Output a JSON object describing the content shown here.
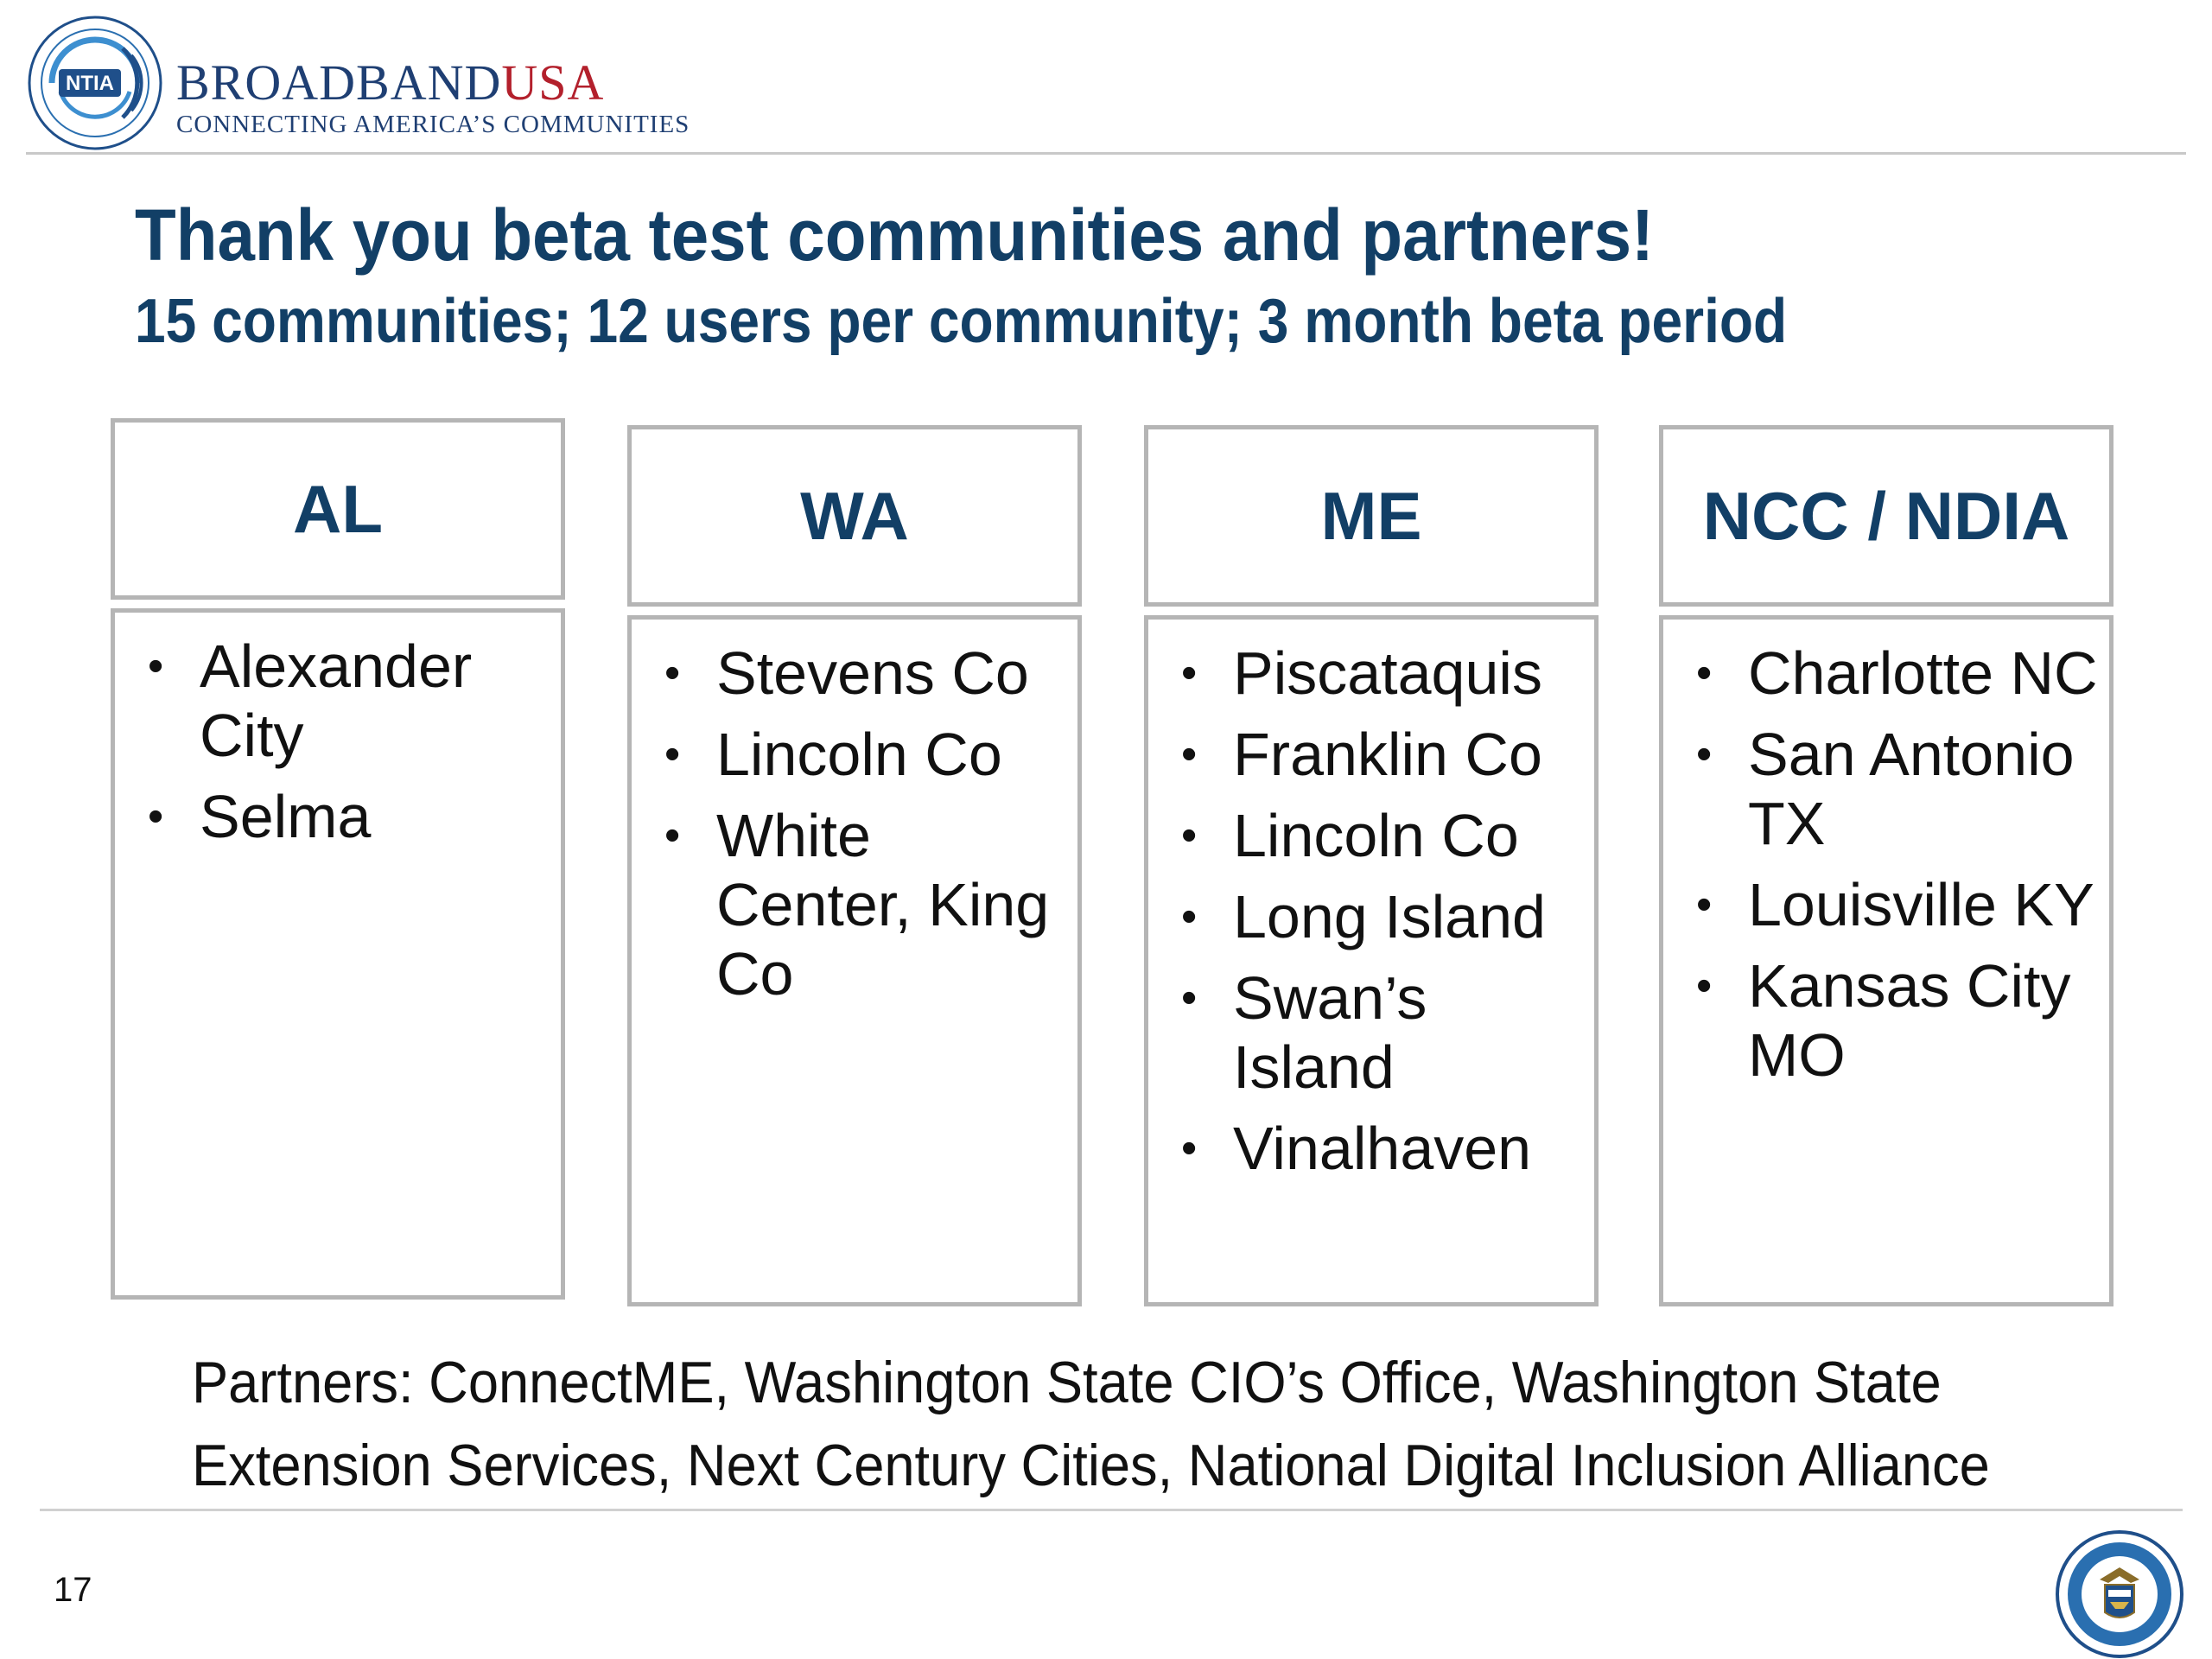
{
  "header": {
    "logo_text": "NTIA",
    "brand_part1": "BROADBAND",
    "brand_part2": "USA",
    "tagline": "CONNECTING AMERICA’S COMMUNITIES"
  },
  "title": "Thank you beta test communities and partners!",
  "subtitle": "15 communities; 12 users per community; 3 month beta period",
  "columns": [
    {
      "heading": "AL",
      "items": [
        "Alexander City",
        "Selma"
      ]
    },
    {
      "heading": "WA",
      "items": [
        "Stevens Co",
        "Lincoln Co",
        "White Center, King Co"
      ]
    },
    {
      "heading": "ME",
      "items": [
        "Piscataquis",
        "Franklin Co",
        "Lincoln Co",
        "Long Island",
        "Swan’s Island",
        "Vinalhaven"
      ]
    },
    {
      "heading": "NCC / NDIA",
      "items": [
        "Charlotte NC",
        "San Antonio TX",
        "Louisville KY",
        "Kansas City MO"
      ]
    }
  ],
  "bullet_char": "•",
  "partners": "Partners: ConnectME, Washington State CIO’s Office, Washington State Extension Services, Next Century Cities, National Digital Inclusion Alliance",
  "page_number": "17",
  "colors": {
    "title": "#123f66",
    "brand_navy": "#1f3f73",
    "brand_red": "#b3202c",
    "border": "#b5b5b5"
  },
  "icons": {
    "header_logo": "ntia-logo-icon",
    "footer_seal": "department-of-commerce-seal-icon"
  }
}
